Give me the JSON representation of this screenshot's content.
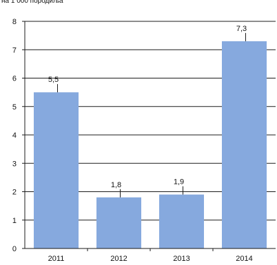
{
  "chart_data": {
    "type": "bar",
    "title": "на 1 000 породиља",
    "categories": [
      "2011",
      "2012",
      "2013",
      "2014"
    ],
    "values": [
      5.5,
      1.8,
      1.9,
      7.3
    ],
    "data_labels": [
      "5,5",
      "1,8",
      "1,9",
      "7,3"
    ],
    "y_ticks": [
      "0",
      "1",
      "2",
      "3",
      "4",
      "5",
      "6",
      "7",
      "8"
    ],
    "ylim": [
      0,
      8
    ],
    "grid": true,
    "bar_color": "#86a9de"
  }
}
